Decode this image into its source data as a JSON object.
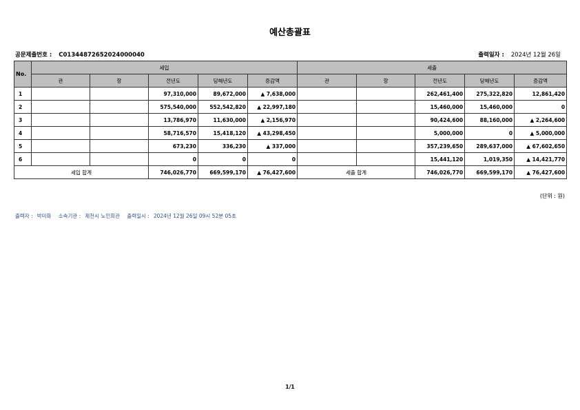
{
  "title": "예산총괄표",
  "doc_no_label": "공문제출번호 :",
  "doc_no": "C01344872652024000040",
  "print_date_label": "출력일자 :",
  "print_date": "2024년 12월 26일",
  "table": {
    "no_header": "No.",
    "income_header": "세입",
    "expense_header": "세출",
    "sub_headers": [
      "관",
      "항",
      "전년도",
      "당해년도",
      "증감액"
    ],
    "rows": [
      {
        "no": "1",
        "in": [
          "",
          "",
          "97,310,000",
          "89,672,000",
          "▲ 7,638,000"
        ],
        "out": [
          "",
          "",
          "262,461,400",
          "275,322,820",
          "12,861,420"
        ]
      },
      {
        "no": "2",
        "in": [
          "",
          "",
          "575,540,000",
          "552,542,820",
          "▲ 22,997,180"
        ],
        "out": [
          "",
          "",
          "15,460,000",
          "15,460,000",
          "0"
        ]
      },
      {
        "no": "3",
        "in": [
          "",
          "",
          "13,786,970",
          "11,630,000",
          "▲ 2,156,970"
        ],
        "out": [
          "",
          "",
          "90,424,600",
          "88,160,000",
          "▲ 2,264,600"
        ]
      },
      {
        "no": "4",
        "in": [
          "",
          "",
          "58,716,570",
          "15,418,120",
          "▲ 43,298,450"
        ],
        "out": [
          "",
          "",
          "5,000,000",
          "0",
          "▲ 5,000,000"
        ]
      },
      {
        "no": "5",
        "in": [
          "",
          "",
          "673,230",
          "336,230",
          "▲ 337,000"
        ],
        "out": [
          "",
          "",
          "357,239,650",
          "289,637,000",
          "▲ 67,602,650"
        ]
      },
      {
        "no": "6",
        "in": [
          "",
          "",
          "0",
          "0",
          "0"
        ],
        "out": [
          "",
          "",
          "15,441,120",
          "1,019,350",
          "▲ 14,421,770"
        ]
      }
    ],
    "income_total": {
      "label": "세입 합계",
      "values": [
        "746,026,770",
        "669,599,170",
        "▲ 76,427,600"
      ]
    },
    "expense_total": {
      "label": "세출 합계",
      "values": [
        "746,026,770",
        "669,599,170",
        "▲ 76,427,600"
      ]
    }
  },
  "unit": "(단위 : 원)",
  "footer": {
    "printer_label": "출력자 :",
    "printer": "박미화",
    "org_label": "소속기관 :",
    "org": "제천시 노인회관",
    "datetime_label": "출력일시 :",
    "datetime": "2024년 12월 26일 09시 52분 05초"
  },
  "page_number": "1/1",
  "colors": {
    "header_bg": "#bfbfbf",
    "footer_text": "#2d4f8a"
  }
}
